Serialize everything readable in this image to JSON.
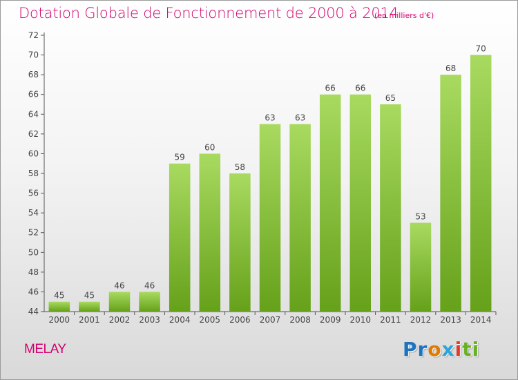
{
  "header": {
    "title": "Dotation Globale de Fonctionnement de 2000 à 2014",
    "unit_note": "(en milliers d'€)"
  },
  "footer": {
    "commune": "MELAY",
    "logo_text": "Proxiti",
    "logo_letters": [
      {
        "char": "P",
        "color": "#1e73be"
      },
      {
        "char": "r",
        "color": "#1e73be"
      },
      {
        "char": "o",
        "color": "#e07b00"
      },
      {
        "char": "x",
        "color": "#2ea4d8"
      },
      {
        "char": "i",
        "color": "#e23a2b"
      },
      {
        "char": "t",
        "color": "#6ab023"
      },
      {
        "char": "i",
        "color": "#6ab023"
      }
    ]
  },
  "colors": {
    "accent": "#d2006e",
    "bar_light": "#a4d65c",
    "bar_dark": "#6aa51d",
    "axis": "#555555",
    "grid": "#c8c8c8",
    "label": "#444444"
  },
  "chart_data": {
    "type": "bar",
    "title": "Dotation Globale de Fonctionnement de 2000 à 2014",
    "subtitle": "(en milliers d'€)",
    "categories": [
      "2000",
      "2001",
      "2002",
      "2003",
      "2004",
      "2005",
      "2006",
      "2007",
      "2008",
      "2009",
      "2010",
      "2011",
      "2012",
      "2013",
      "2014"
    ],
    "values": [
      45,
      45,
      46,
      46,
      59,
      60,
      58,
      63,
      63,
      66,
      66,
      65,
      53,
      68,
      70
    ],
    "ylim": [
      44,
      72
    ],
    "yticks": [
      44,
      46,
      48,
      50,
      52,
      54,
      56,
      58,
      60,
      62,
      64,
      66,
      68,
      70,
      72
    ],
    "data_labels": true,
    "grid": false,
    "legend": "none"
  }
}
